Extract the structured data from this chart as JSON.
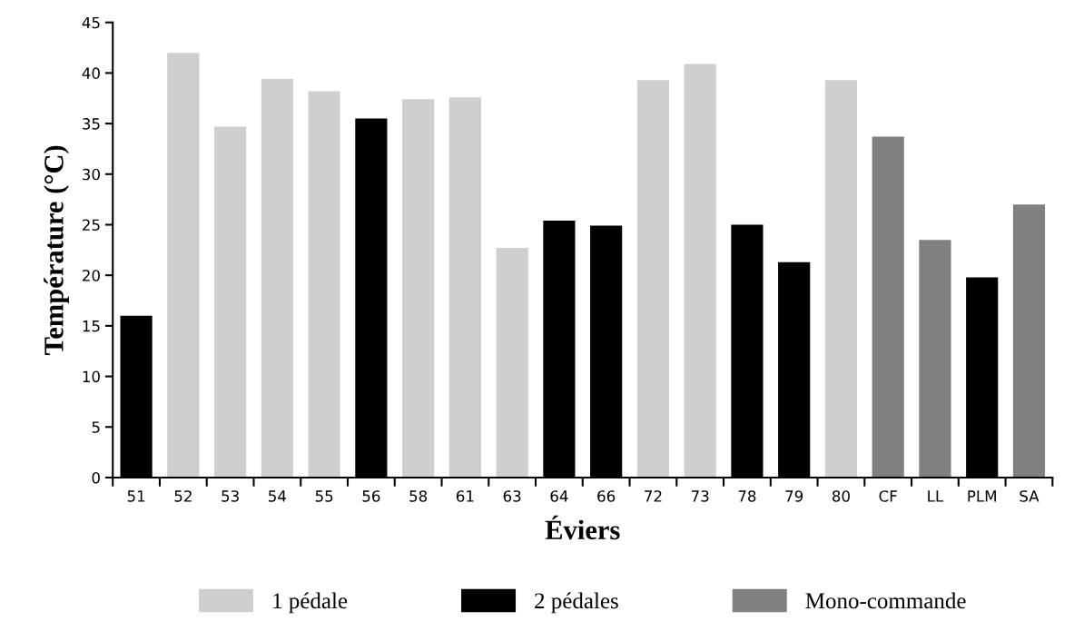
{
  "chart_data": {
    "type": "bar",
    "stacked": true,
    "xlabel": "Éviers",
    "ylabel": "Température (°C)",
    "categories": [
      "51",
      "52",
      "53",
      "54",
      "55",
      "56",
      "58",
      "61",
      "63",
      "64",
      "66",
      "72",
      "73",
      "78",
      "79",
      "80",
      "CF",
      "LL",
      "PLM",
      "SA"
    ],
    "series": [
      {
        "name": "1 pédale",
        "color": "#d0cfd0",
        "values": [
          null,
          42,
          34.7,
          39.4,
          38.2,
          null,
          37.4,
          37.6,
          22.7,
          null,
          null,
          39.3,
          40.9,
          null,
          null,
          39.3,
          null,
          null,
          null,
          null
        ]
      },
      {
        "name": "2 pédales",
        "color": "#000000",
        "values": [
          16,
          null,
          null,
          null,
          null,
          35.5,
          null,
          null,
          null,
          25.4,
          24.9,
          null,
          null,
          25.0,
          21.3,
          null,
          null,
          null,
          19.8,
          null
        ]
      },
      {
        "name": "Mono-commande",
        "color": "#808080",
        "values": [
          null,
          null,
          null,
          null,
          null,
          null,
          null,
          null,
          null,
          null,
          null,
          null,
          null,
          null,
          null,
          null,
          33.7,
          23.5,
          null,
          27.0
        ]
      }
    ],
    "ylim": [
      0,
      45
    ],
    "yticks": [
      0,
      5,
      10,
      15,
      20,
      25,
      30,
      35,
      40,
      45
    ],
    "grid": false,
    "legend": "bottom"
  }
}
